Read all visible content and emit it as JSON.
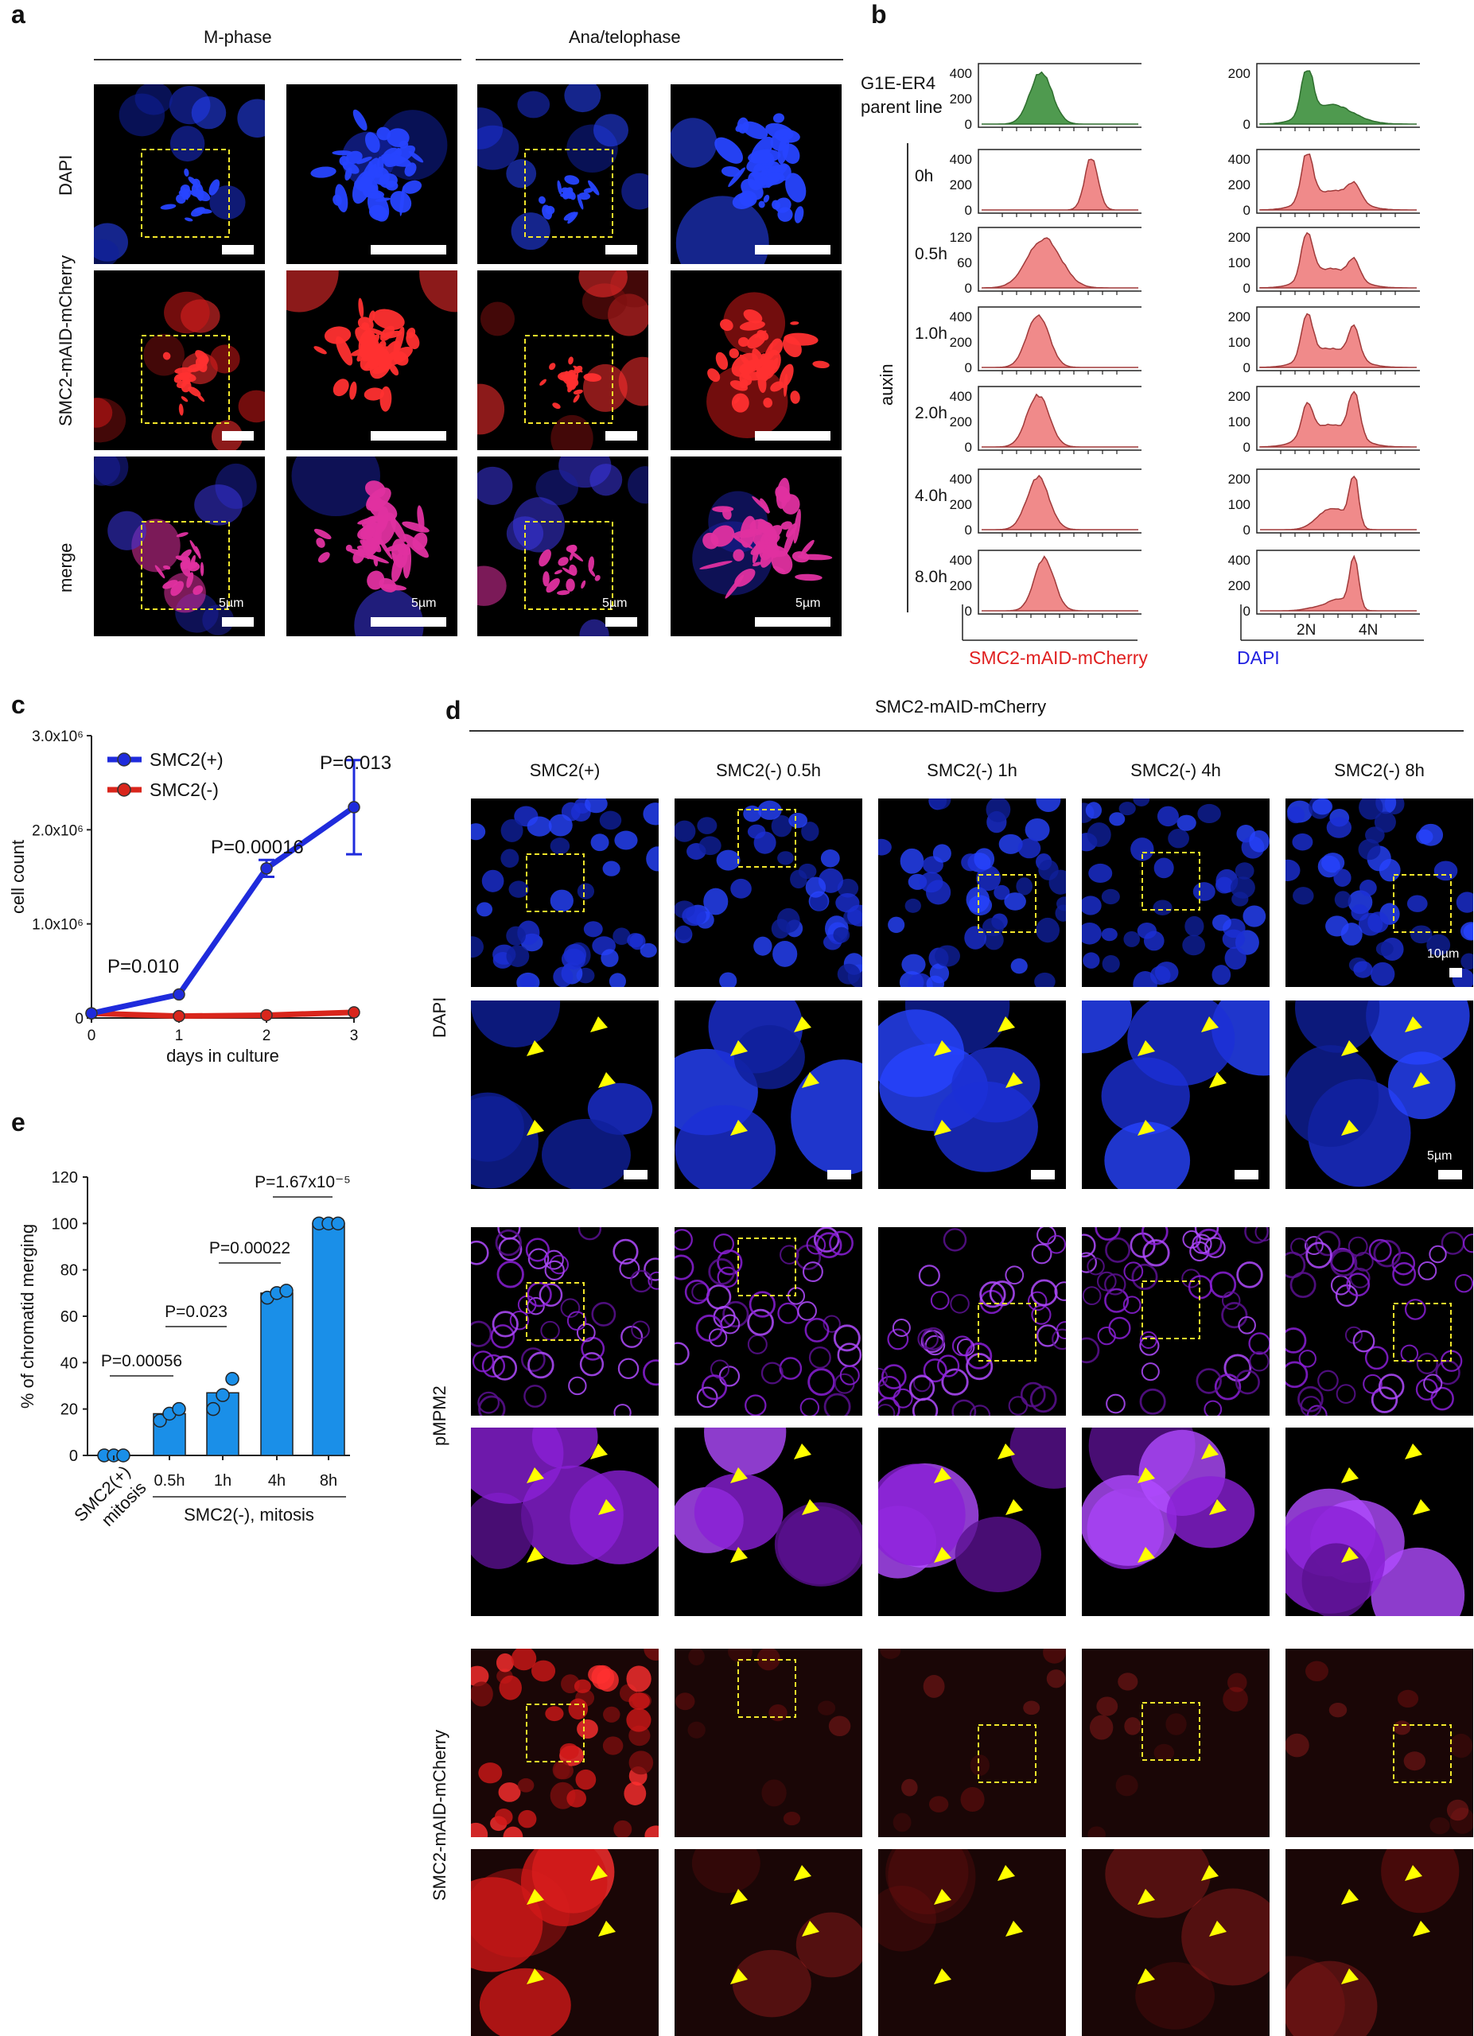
{
  "panels": {
    "a": "a",
    "b": "b",
    "c": "c",
    "d": "d",
    "e": "e"
  },
  "panel_a": {
    "col_headers": [
      "M-phase",
      "Ana/telophase"
    ],
    "row_labels": [
      "DAPI",
      "SMC2-mAID-mCherry",
      "merge"
    ],
    "scale_label": "5µm"
  },
  "panel_b": {
    "parent_label_1": "G1E-ER4",
    "parent_label_2": "parent line",
    "auxin_label": "auxin",
    "time_labels": [
      "0h",
      "0.5h",
      "1.0h",
      "2.0h",
      "4.0h",
      "8.0h"
    ],
    "x_axis_left": "SMC2-mAID-mCherry",
    "x_axis_right": "DAPI",
    "ploidy_ticks": [
      "2N",
      "4N"
    ],
    "left_yticks": [
      [
        "400",
        "200",
        "0"
      ],
      [
        "400",
        "200",
        "0"
      ],
      [
        "120",
        "60",
        "0"
      ],
      [
        "400",
        "200",
        "0"
      ],
      [
        "400",
        "200",
        "0"
      ],
      [
        "400",
        "200",
        "0"
      ],
      [
        "400",
        "200",
        "0"
      ]
    ],
    "right_yticks": [
      [
        "200",
        "0"
      ],
      [
        "400",
        "200",
        "0"
      ],
      [
        "200",
        "100",
        "0"
      ],
      [
        "200",
        "100",
        "0"
      ],
      [
        "200",
        "100",
        "0"
      ],
      [
        "200",
        "100",
        "0"
      ],
      [
        "400",
        "200",
        "0"
      ]
    ],
    "colors": {
      "parent": "#4f9a4f",
      "auxin": "#f08a8a",
      "left_axis_label": "#e02020",
      "right_axis_label": "#2020e0"
    }
  },
  "panel_c": {
    "legend": [
      "SMC2(+)",
      "SMC2(-)"
    ],
    "xlabel": "days in culture",
    "ylabel": "cell count",
    "yticks": [
      "0",
      "1.0x10⁶",
      "2.0x10⁶",
      "3.0x10⁶"
    ],
    "xticks": [
      "0",
      "1",
      "2",
      "3"
    ],
    "pvalues": [
      "P=0.010",
      "P=0.00016",
      "P=0.013"
    ]
  },
  "panel_d": {
    "title": "SMC2-mAID-mCherry",
    "col_headers": [
      "SMC2(+)",
      "SMC2(-) 0.5h",
      "SMC2(-) 1h",
      "SMC2(-) 4h",
      "SMC2(-) 8h"
    ],
    "row_labels": [
      "DAPI",
      "pMPM2",
      "SMC2-mAID-mCherry"
    ],
    "scale_10": "10µm",
    "scale_5": "5µm"
  },
  "panel_e": {
    "ylabel": "% of chromatid merging",
    "yticks": [
      "0",
      "20",
      "40",
      "60",
      "80",
      "100",
      "120"
    ],
    "xticks": [
      "0.5h",
      "1h",
      "4h",
      "8h"
    ],
    "x_first_1": "SMC2(+)",
    "x_first_2": "mitosis",
    "x_group": "SMC2(-), mitosis",
    "pvalues": [
      "P=0.00056",
      "P=0.023",
      "P=0.00022",
      "P=1.67x10⁻⁵"
    ]
  },
  "chart_data": [
    {
      "type": "line",
      "title": "",
      "xlabel": "days in culture",
      "ylabel": "cell count",
      "x": [
        0,
        1,
        2,
        3
      ],
      "ylim": [
        0,
        3000000
      ],
      "series": [
        {
          "name": "SMC2(+)",
          "values": [
            50000,
            250000,
            1590000,
            2240000
          ],
          "errors": [
            10000,
            20000,
            90000,
            500000
          ],
          "color": "#1f2bdc"
        },
        {
          "name": "SMC2(-)",
          "values": [
            50000,
            20000,
            30000,
            60000
          ],
          "errors": [
            5000,
            5000,
            5000,
            10000
          ],
          "color": "#d9261c"
        }
      ],
      "annotations": [
        "P=0.010",
        "P=0.00016",
        "P=0.013"
      ]
    },
    {
      "type": "bar",
      "title": "",
      "xlabel": "",
      "ylabel": "% of chromatid merging",
      "categories": [
        "SMC2(+) mitosis",
        "0.5h",
        "1h",
        "4h",
        "8h"
      ],
      "values": [
        0,
        18,
        27,
        70,
        100
      ],
      "points": [
        [
          0,
          0,
          0
        ],
        [
          15,
          18,
          20
        ],
        [
          20,
          26,
          33
        ],
        [
          68,
          70,
          71
        ],
        [
          100,
          100,
          100
        ]
      ],
      "ylim": [
        0,
        120
      ],
      "color": "#1a8fe8",
      "annotations": [
        "P=0.00056",
        "P=0.023",
        "P=0.00022",
        "P=1.67x10⁻⁵"
      ]
    }
  ]
}
